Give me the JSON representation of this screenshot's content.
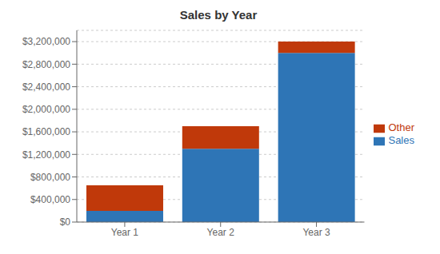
{
  "chart_data": {
    "type": "bar",
    "title": "Sales by Year",
    "categories": [
      "Year 1",
      "Year 2",
      "Year 3"
    ],
    "series": [
      {
        "name": "Sales",
        "color": "#2E75B6",
        "values": [
          200000,
          1300000,
          3000000
        ]
      },
      {
        "name": "Other",
        "color": "#C0390A",
        "values": [
          450000,
          400000,
          200000
        ]
      }
    ],
    "stacked": true,
    "ylim": [
      0,
      3400000
    ],
    "yticks": [
      {
        "value": 0,
        "label": "$0"
      },
      {
        "value": 400000,
        "label": "$400,000"
      },
      {
        "value": 800000,
        "label": "$800,000"
      },
      {
        "value": 1200000,
        "label": "$1,200,000"
      },
      {
        "value": 1600000,
        "label": "$1,600,000"
      },
      {
        "value": 2000000,
        "label": "$2,000,000"
      },
      {
        "value": 2400000,
        "label": "$2,400,000"
      },
      {
        "value": 2800000,
        "label": "$2,800,000"
      },
      {
        "value": 3200000,
        "label": "$3,200,000"
      }
    ],
    "grid": true,
    "legend": "right"
  }
}
